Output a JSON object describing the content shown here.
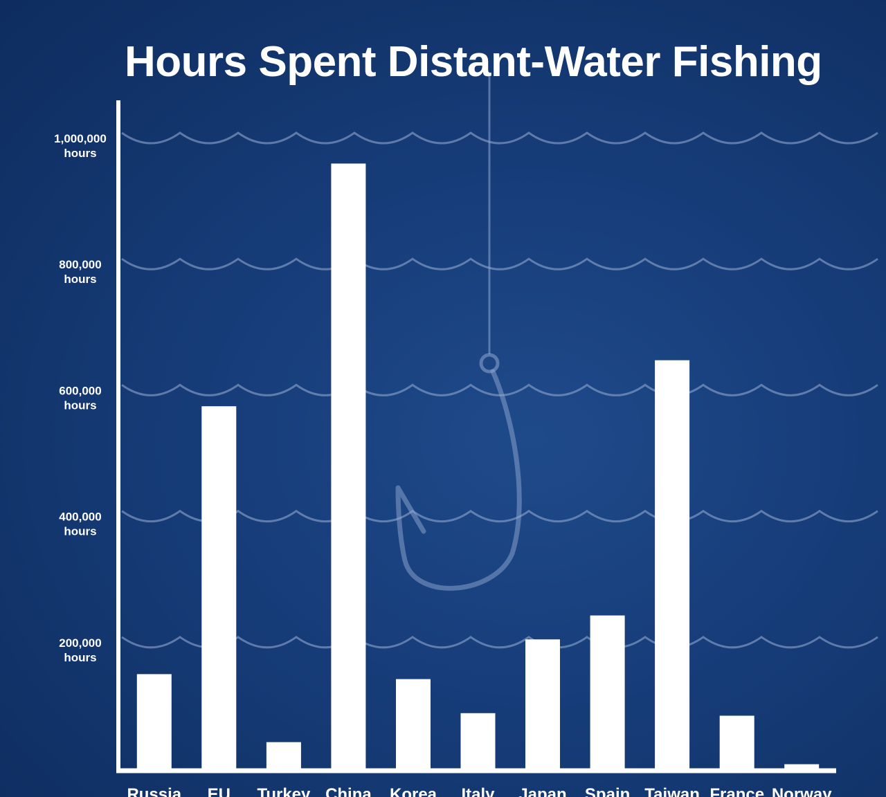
{
  "chart_data": {
    "type": "bar",
    "title": "Hours Spent Distant-Water Fishing",
    "categories": [
      "Russia",
      "EU",
      "Turkey",
      "China",
      "Korea",
      "Italy",
      "Japan",
      "Spain",
      "Taiwan",
      "France",
      "Norway"
    ],
    "values": [
      150000,
      575000,
      42000,
      960000,
      142000,
      88000,
      205000,
      243000,
      648000,
      84000,
      7000
    ],
    "y_ticks": [
      {
        "value": 200000,
        "label": "200,000",
        "unit": "hours"
      },
      {
        "value": 400000,
        "label": "400,000",
        "unit": "hours"
      },
      {
        "value": 600000,
        "label": "600,000",
        "unit": "hours"
      },
      {
        "value": 800000,
        "label": "800,000",
        "unit": "hours"
      },
      {
        "value": 1000000,
        "label": "1,000,000",
        "unit": "hours"
      }
    ],
    "ylim": [
      0,
      1000000
    ],
    "xlabel": "",
    "ylabel": "",
    "grid": true,
    "legend": "none",
    "colors": {
      "bar": "#ffffff",
      "axis": "#ffffff",
      "gridline": "#8fa7cf",
      "background": "#163c78"
    },
    "decoration": "fishing-hook-icon"
  }
}
